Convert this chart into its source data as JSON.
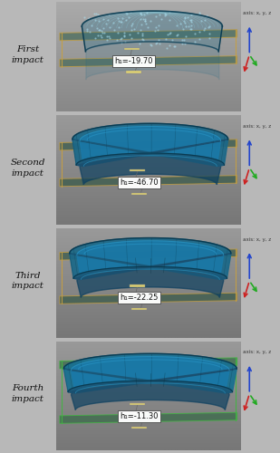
{
  "panels": [
    {
      "label": "First\nimpact",
      "measurement": "h₁=-19.70",
      "plane_color": "#4a6b5a",
      "border_color": "#c8a040",
      "bg_top": "#aaaaaa",
      "bg_bot": "#888888",
      "obj_color": "#1a6888",
      "obj_alpha": 0.45,
      "is_mesh": true,
      "deform": 0.0
    },
    {
      "label": "Second\nimpact",
      "measurement": "h₁=-46.70",
      "plane_color": "#3a5a4a",
      "border_color": "#c8a040",
      "bg_top": "#999999",
      "bg_bot": "#777777",
      "obj_color": "#1a6888",
      "obj_alpha": 0.92,
      "is_mesh": false,
      "deform": 1.0
    },
    {
      "label": "Third\nimpact",
      "measurement": "h₁=-22.25",
      "plane_color": "#3a5a4a",
      "border_color": "#c8a040",
      "bg_top": "#999999",
      "bg_bot": "#777777",
      "obj_color": "#1a6888",
      "obj_alpha": 0.92,
      "is_mesh": false,
      "deform": 1.5
    },
    {
      "label": "Fourth\nimpact",
      "measurement": "h₁=-11.30",
      "plane_color": "#3a6a4a",
      "border_color": "#40b840",
      "bg_top": "#999999",
      "bg_bot": "#777777",
      "obj_color": "#1a7090",
      "obj_alpha": 0.95,
      "is_mesh": false,
      "deform": 2.5
    }
  ],
  "figure_bg": "#b8b8b8",
  "label_fontsize": 7.5,
  "meas_fontsize": 6.0,
  "axis_label_fontsize": 4.0
}
